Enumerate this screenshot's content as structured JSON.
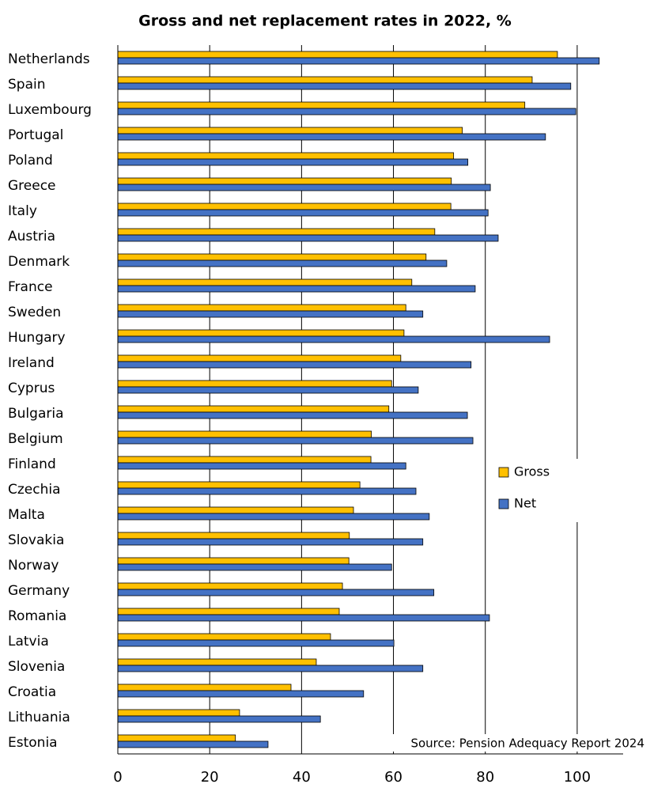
{
  "chart_data": {
    "type": "bar",
    "orientation": "horizontal",
    "title": "Gross and net replacement rates in 2022, %",
    "source": "Source: Pension Adequacy Report 2024",
    "categories": [
      "Netherlands",
      "Spain",
      "Luxembourg",
      "Portugal",
      "Poland",
      "Greece",
      "Italy",
      "Austria",
      "Denmark",
      "France",
      "Sweden",
      "Hungary",
      "Ireland",
      "Cyprus",
      "Bulgaria",
      "Belgium",
      "Finland",
      "Czechia",
      "Malta",
      "Slovakia",
      "Norway",
      "Germany",
      "Romania",
      "Latvia",
      "Slovenia",
      "Croatia",
      "Lithuania",
      "Estonia"
    ],
    "series": [
      {
        "name": "Gross",
        "color": "#ffc000",
        "values": [
          95.7,
          90.2,
          88.6,
          75.0,
          73.1,
          72.6,
          72.5,
          69.0,
          67.1,
          64.0,
          62.7,
          62.3,
          61.6,
          59.6,
          59.0,
          55.2,
          55.1,
          52.7,
          51.3,
          50.4,
          50.3,
          48.9,
          48.2,
          46.3,
          43.2,
          37.7,
          26.5,
          25.6
        ]
      },
      {
        "name": "Net",
        "color": "#4472c4",
        "values": [
          104.8,
          98.6,
          99.7,
          93.1,
          76.2,
          81.1,
          80.6,
          82.8,
          71.6,
          77.8,
          66.4,
          94.0,
          76.9,
          65.4,
          76.1,
          77.3,
          62.7,
          64.9,
          67.8,
          66.4,
          59.6,
          68.8,
          80.9,
          60.1,
          66.4,
          53.5,
          44.1,
          32.7
        ]
      }
    ],
    "xlim": [
      0,
      110
    ],
    "xticks": [
      0,
      20,
      40,
      60,
      80,
      100
    ],
    "grid": true,
    "legend": "right"
  }
}
